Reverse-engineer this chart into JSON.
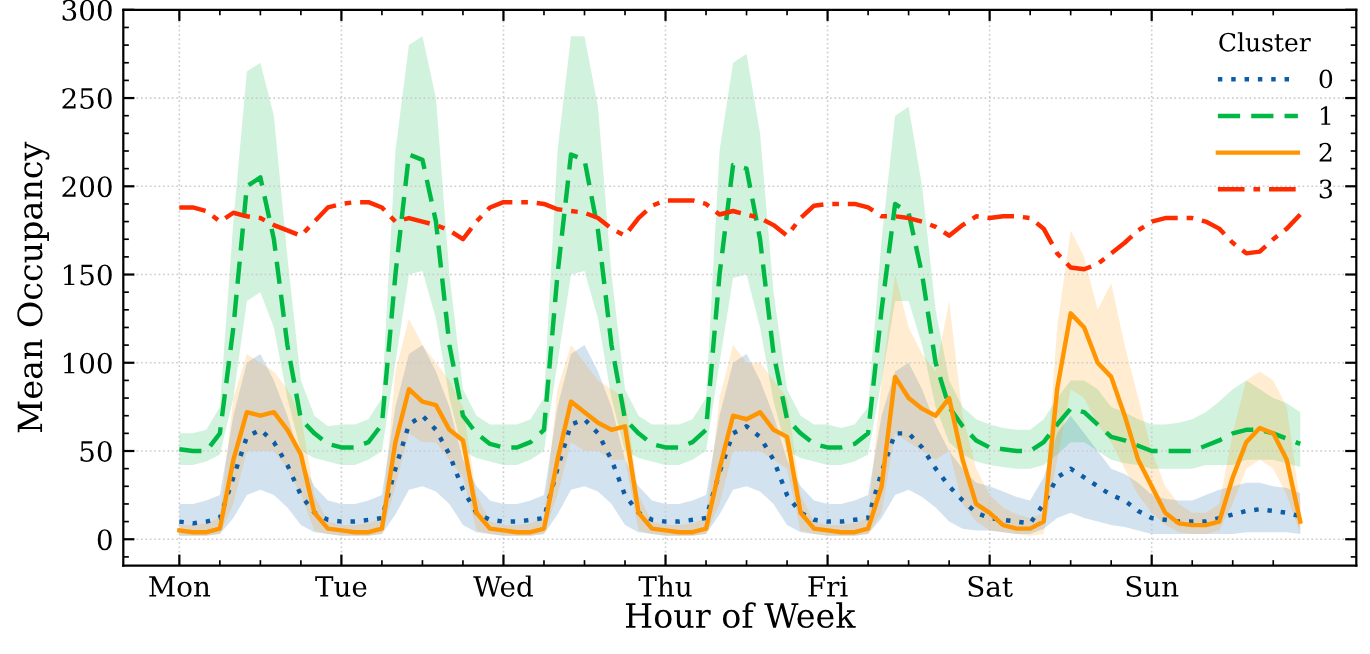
{
  "chart_data": {
    "type": "line",
    "xlabel": "Hour of Week",
    "ylabel": "Mean Occupancy",
    "legend_title": "Cluster",
    "legend": "top right",
    "grid": true,
    "marker": "none",
    "categories": [
      "Mon",
      null,
      null,
      null,
      null,
      null,
      null,
      null,
      null,
      null,
      null,
      null,
      "Tue",
      null,
      null,
      null,
      null,
      null,
      null,
      null,
      null,
      null,
      null,
      null,
      "Wed",
      null,
      null,
      null,
      null,
      null,
      null,
      null,
      null,
      null,
      null,
      null,
      "Thu",
      null,
      null,
      null,
      null,
      null,
      null,
      null,
      null,
      null,
      null,
      null,
      "Fri",
      null,
      null,
      null,
      null,
      null,
      null,
      null,
      null,
      null,
      null,
      null,
      "Sat",
      null,
      null,
      null,
      null,
      null,
      null,
      null,
      null,
      null,
      null,
      null,
      "Sun",
      null,
      null,
      null,
      null,
      null,
      null,
      null,
      null,
      null,
      null,
      null
    ],
    "ylim": [
      -15,
      300
    ],
    "yticks": [
      0,
      50,
      100,
      150,
      200,
      250,
      300
    ],
    "series": [
      {
        "name": "0",
        "color": "#0c5da5",
        "line_style": "dotted",
        "values": [
          10,
          9,
          10,
          12,
          35,
          58,
          62,
          55,
          42,
          25,
          15,
          11,
          10,
          10,
          11,
          12,
          40,
          65,
          70,
          62,
          48,
          28,
          15,
          11,
          10,
          10,
          11,
          12,
          40,
          65,
          68,
          60,
          45,
          25,
          15,
          11,
          10,
          10,
          11,
          12,
          38,
          60,
          64,
          58,
          45,
          25,
          15,
          11,
          10,
          10,
          11,
          12,
          38,
          60,
          60,
          52,
          40,
          30,
          22,
          15,
          12,
          11,
          10,
          9,
          20,
          35,
          40,
          35,
          30,
          25,
          22,
          16,
          12,
          11,
          10,
          10,
          10,
          12,
          14,
          16,
          17,
          16,
          15,
          13
        ],
        "upper": [
          20,
          20,
          22,
          25,
          70,
          100,
          105,
          90,
          70,
          45,
          30,
          22,
          20,
          20,
          22,
          25,
          75,
          105,
          110,
          95,
          75,
          45,
          30,
          22,
          20,
          20,
          22,
          25,
          75,
          105,
          110,
          95,
          75,
          45,
          30,
          22,
          20,
          20,
          22,
          25,
          70,
          100,
          105,
          90,
          70,
          45,
          30,
          22,
          20,
          20,
          22,
          25,
          70,
          95,
          100,
          85,
          65,
          50,
          40,
          32,
          30,
          27,
          24,
          22,
          35,
          60,
          70,
          60,
          50,
          40,
          37,
          32,
          25,
          23,
          22,
          22,
          25,
          28,
          30,
          32,
          32,
          30,
          29,
          26
        ],
        "lower": [
          2,
          2,
          2,
          3,
          12,
          25,
          28,
          25,
          18,
          8,
          4,
          3,
          2,
          2,
          2,
          3,
          14,
          28,
          30,
          27,
          20,
          8,
          4,
          3,
          2,
          2,
          2,
          3,
          14,
          28,
          30,
          27,
          20,
          8,
          4,
          3,
          2,
          2,
          2,
          3,
          14,
          28,
          30,
          27,
          20,
          8,
          4,
          3,
          2,
          2,
          2,
          3,
          12,
          25,
          28,
          24,
          18,
          10,
          6,
          5,
          5,
          4,
          3,
          3,
          6,
          12,
          15,
          12,
          10,
          8,
          7,
          5,
          3,
          3,
          3,
          3,
          3,
          3,
          3,
          4,
          4,
          4,
          4,
          3
        ]
      },
      {
        "name": "1",
        "color": "#00b945",
        "line_style": "dashed",
        "values": [
          51,
          50,
          50,
          60,
          120,
          200,
          205,
          170,
          110,
          68,
          60,
          54,
          52,
          52,
          55,
          65,
          150,
          218,
          215,
          180,
          110,
          70,
          60,
          54,
          52,
          52,
          55,
          62,
          150,
          218,
          215,
          175,
          110,
          68,
          60,
          54,
          52,
          52,
          55,
          62,
          150,
          212,
          210,
          170,
          105,
          68,
          60,
          54,
          52,
          52,
          54,
          60,
          130,
          190,
          185,
          150,
          100,
          75,
          64,
          56,
          52,
          51,
          50,
          50,
          55,
          65,
          74,
          72,
          65,
          58,
          56,
          53,
          50,
          50,
          50,
          50,
          53,
          56,
          60,
          62,
          62,
          60,
          57,
          54
        ],
        "upper": [
          60,
          60,
          62,
          75,
          180,
          265,
          270,
          240,
          160,
          90,
          70,
          64,
          65,
          65,
          68,
          80,
          220,
          280,
          285,
          250,
          150,
          85,
          70,
          65,
          65,
          65,
          68,
          80,
          220,
          285,
          285,
          245,
          150,
          85,
          70,
          65,
          65,
          65,
          68,
          80,
          220,
          270,
          275,
          230,
          140,
          85,
          70,
          65,
          65,
          63,
          65,
          75,
          170,
          240,
          245,
          200,
          130,
          90,
          75,
          68,
          65,
          63,
          62,
          62,
          68,
          80,
          90,
          90,
          85,
          75,
          72,
          68,
          65,
          65,
          66,
          68,
          72,
          78,
          85,
          90,
          85,
          80,
          77,
          72
        ],
        "lower": [
          42,
          42,
          44,
          48,
          80,
          135,
          140,
          120,
          80,
          50,
          46,
          44,
          42,
          42,
          45,
          50,
          100,
          150,
          152,
          125,
          80,
          50,
          46,
          44,
          42,
          42,
          45,
          50,
          100,
          150,
          152,
          125,
          80,
          50,
          46,
          44,
          42,
          42,
          45,
          50,
          100,
          148,
          150,
          120,
          78,
          50,
          46,
          44,
          42,
          42,
          44,
          48,
          90,
          135,
          135,
          110,
          75,
          55,
          48,
          44,
          42,
          41,
          40,
          40,
          42,
          48,
          55,
          55,
          50,
          45,
          43,
          42,
          40,
          40,
          40,
          40,
          42,
          42,
          42,
          45,
          45,
          45,
          43,
          41
        ]
      },
      {
        "name": "2",
        "color": "#ff9500",
        "line_style": "solid",
        "values": [
          5,
          4,
          4,
          6,
          45,
          72,
          70,
          72,
          62,
          48,
          15,
          6,
          5,
          4,
          4,
          6,
          55,
          85,
          78,
          76,
          62,
          56,
          15,
          6,
          5,
          4,
          4,
          6,
          45,
          78,
          72,
          66,
          62,
          64,
          15,
          6,
          5,
          4,
          4,
          6,
          40,
          70,
          68,
          72,
          62,
          58,
          15,
          6,
          5,
          4,
          4,
          6,
          30,
          92,
          80,
          74,
          70,
          80,
          45,
          20,
          15,
          8,
          6,
          6,
          10,
          85,
          128,
          120,
          100,
          92,
          70,
          45,
          30,
          15,
          9,
          8,
          8,
          10,
          35,
          55,
          63,
          60,
          45,
          10
        ],
        "upper": [
          8,
          8,
          9,
          12,
          80,
          105,
          100,
          95,
          85,
          70,
          25,
          10,
          8,
          8,
          9,
          12,
          95,
          125,
          110,
          100,
          90,
          75,
          25,
          10,
          8,
          8,
          9,
          12,
          85,
          110,
          100,
          90,
          85,
          80,
          25,
          10,
          8,
          8,
          9,
          12,
          80,
          110,
          100,
          100,
          90,
          80,
          25,
          10,
          8,
          8,
          9,
          12,
          90,
          150,
          120,
          105,
          95,
          135,
          70,
          40,
          25,
          18,
          14,
          12,
          15,
          120,
          175,
          160,
          130,
          145,
          110,
          80,
          50,
          30,
          20,
          15,
          15,
          20,
          60,
          90,
          95,
          90,
          75,
          20
        ],
        "lower": [
          2,
          2,
          2,
          3,
          20,
          50,
          50,
          50,
          40,
          25,
          5,
          3,
          2,
          2,
          2,
          3,
          30,
          60,
          55,
          55,
          45,
          35,
          5,
          3,
          2,
          2,
          2,
          3,
          25,
          55,
          50,
          50,
          45,
          45,
          5,
          3,
          2,
          2,
          2,
          3,
          20,
          50,
          50,
          50,
          45,
          40,
          5,
          3,
          2,
          2,
          2,
          3,
          15,
          60,
          55,
          50,
          45,
          50,
          20,
          10,
          5,
          4,
          3,
          2,
          3,
          45,
          85,
          80,
          65,
          55,
          40,
          25,
          15,
          8,
          4,
          3,
          3,
          5,
          20,
          40,
          45,
          40,
          25,
          3
        ]
      },
      {
        "name": "3",
        "color": "#ff2c00",
        "line_style": "dashdot",
        "values": [
          188,
          188,
          186,
          180,
          185,
          183,
          182,
          178,
          175,
          172,
          180,
          188,
          190,
          191,
          191,
          188,
          180,
          182,
          180,
          178,
          175,
          170,
          180,
          188,
          191,
          191,
          191,
          190,
          187,
          186,
          185,
          182,
          176,
          172,
          182,
          189,
          192,
          192,
          192,
          190,
          184,
          186,
          184,
          182,
          178,
          172,
          182,
          189,
          190,
          190,
          190,
          188,
          183,
          183,
          182,
          180,
          177,
          172,
          178,
          183,
          182,
          183,
          183,
          182,
          176,
          162,
          154,
          153,
          156,
          162,
          168,
          175,
          180,
          182,
          182,
          182,
          180,
          176,
          168,
          162,
          163,
          170,
          176,
          184
        ]
      }
    ]
  }
}
